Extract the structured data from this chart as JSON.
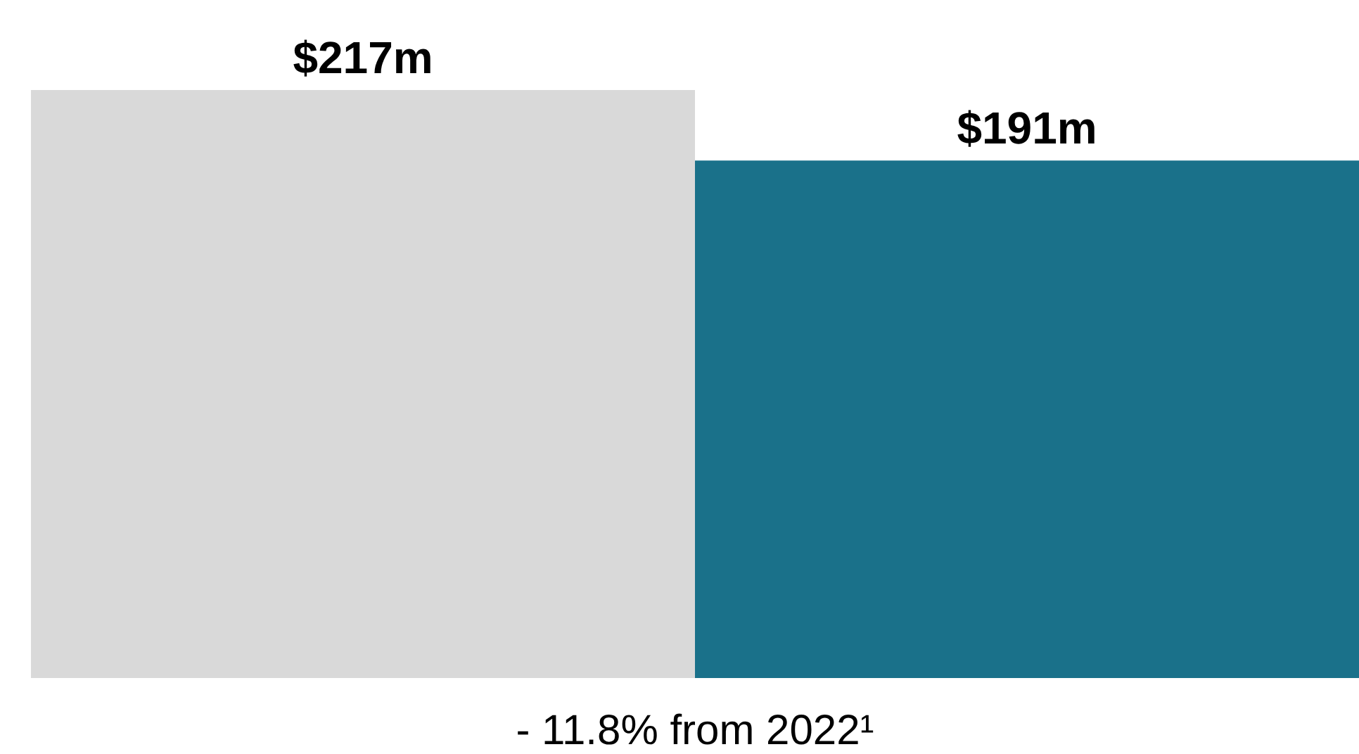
{
  "chart_data": {
    "type": "bar",
    "categories": [
      null,
      null
    ],
    "values": [
      217,
      191
    ],
    "colors": [
      "#d9d9d9",
      "#1a718a"
    ],
    "value_labels": [
      "$217m",
      "$191m"
    ],
    "annotations": [
      "- 11.8% from 2022¹"
    ]
  }
}
